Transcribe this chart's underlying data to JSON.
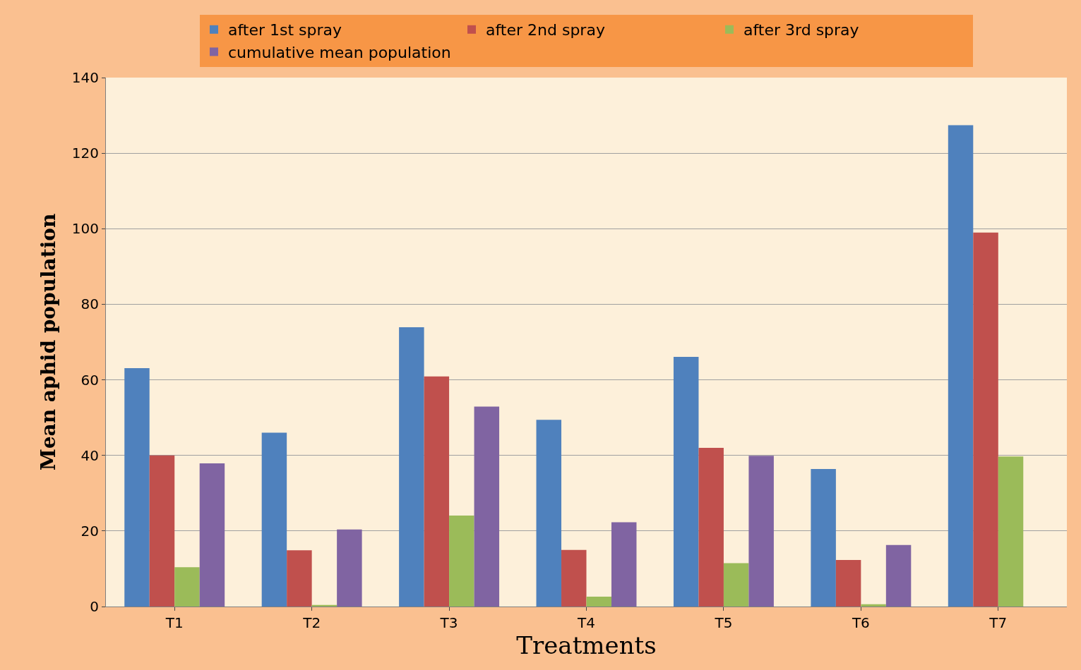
{
  "chart_data": {
    "type": "bar",
    "xlabel": "Treatments",
    "ylabel": "Mean aphid population",
    "categories": [
      "T1",
      "T2",
      "T3",
      "T4",
      "T5",
      "T6",
      "T7"
    ],
    "series": [
      {
        "name": "after 1st spray",
        "color": "#4f81bd",
        "values": [
          63.1,
          46.0,
          73.9,
          49.4,
          66.1,
          36.4,
          127.4
        ]
      },
      {
        "name": "after 2nd spray",
        "color": "#c0504d",
        "values": [
          40.0,
          14.9,
          60.9,
          15.0,
          42.0,
          12.3,
          99.0
        ]
      },
      {
        "name": "after 3rd spray",
        "color": "#9bbb59",
        "values": [
          10.4,
          0.4,
          24.1,
          2.6,
          11.5,
          0.6,
          39.7
        ]
      },
      {
        "name": "cumulative mean population",
        "color": "#8064a2",
        "values": [
          37.9,
          20.4,
          52.9,
          22.3,
          39.9,
          16.3,
          null
        ]
      }
    ],
    "ylim": [
      0,
      140
    ],
    "yticks": [
      0,
      20,
      40,
      60,
      80,
      100,
      120,
      140
    ],
    "grid": "y",
    "legend": "top"
  }
}
